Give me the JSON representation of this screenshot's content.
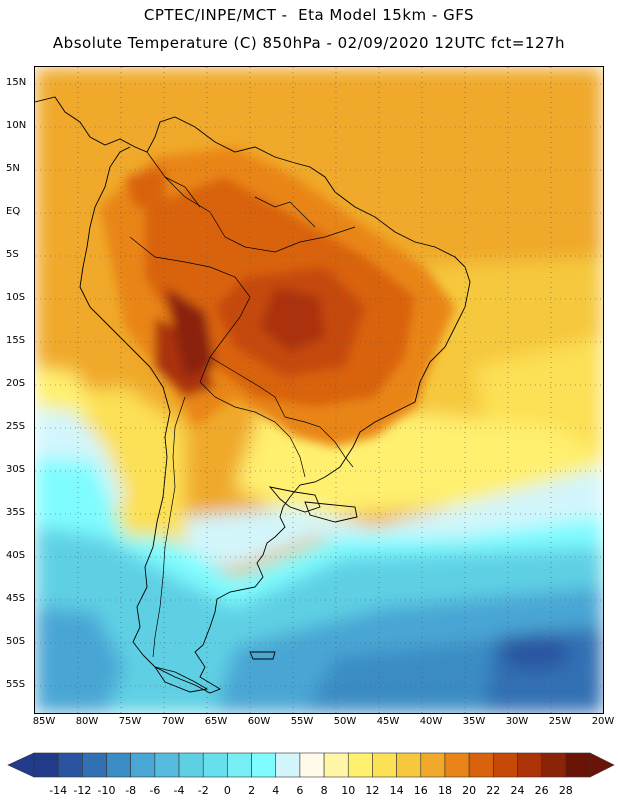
{
  "header": {
    "line1": "CPTEC/INPE/MCT -  Eta Model 15km - GFS",
    "line2": "Absolute Temperature (C) 850hPa - 02/09/2020 12UTC fct=127h"
  },
  "map": {
    "region": "South America",
    "lat_labels": [
      "15N",
      "10N",
      "5N",
      "EQ",
      "5S",
      "10S",
      "15S",
      "20S",
      "25S",
      "30S",
      "35S",
      "40S",
      "45S",
      "50S",
      "55S"
    ],
    "lon_labels": [
      "85W",
      "80W",
      "75W",
      "70W",
      "65W",
      "60W",
      "55W",
      "50W",
      "45W",
      "40W",
      "35W",
      "30W",
      "25W",
      "20W"
    ],
    "lat_range": [
      17,
      -58
    ],
    "lon_range": [
      -86,
      -20
    ]
  },
  "colorbar": {
    "labels": [
      "-14",
      "-12",
      "-10",
      "-8",
      "-6",
      "-4",
      "-2",
      "0",
      "2",
      "4",
      "6",
      "8",
      "10",
      "12",
      "14",
      "16",
      "18",
      "20",
      "22",
      "24",
      "26",
      "28"
    ],
    "colors": [
      "#213a8a",
      "#2a54a0",
      "#3270b4",
      "#3a8cc4",
      "#4aa6d4",
      "#56bcdf",
      "#5fd0e4",
      "#66e0ec",
      "#76eef4",
      "#7ffcff",
      "#d2f6fc",
      "#fffbe8",
      "#fff6a8",
      "#fff070",
      "#fce055",
      "#f6c83e",
      "#f0a92a",
      "#e98518",
      "#d9620d",
      "#c54a08",
      "#ab3307",
      "#8a2308",
      "#6a1408"
    ]
  }
}
